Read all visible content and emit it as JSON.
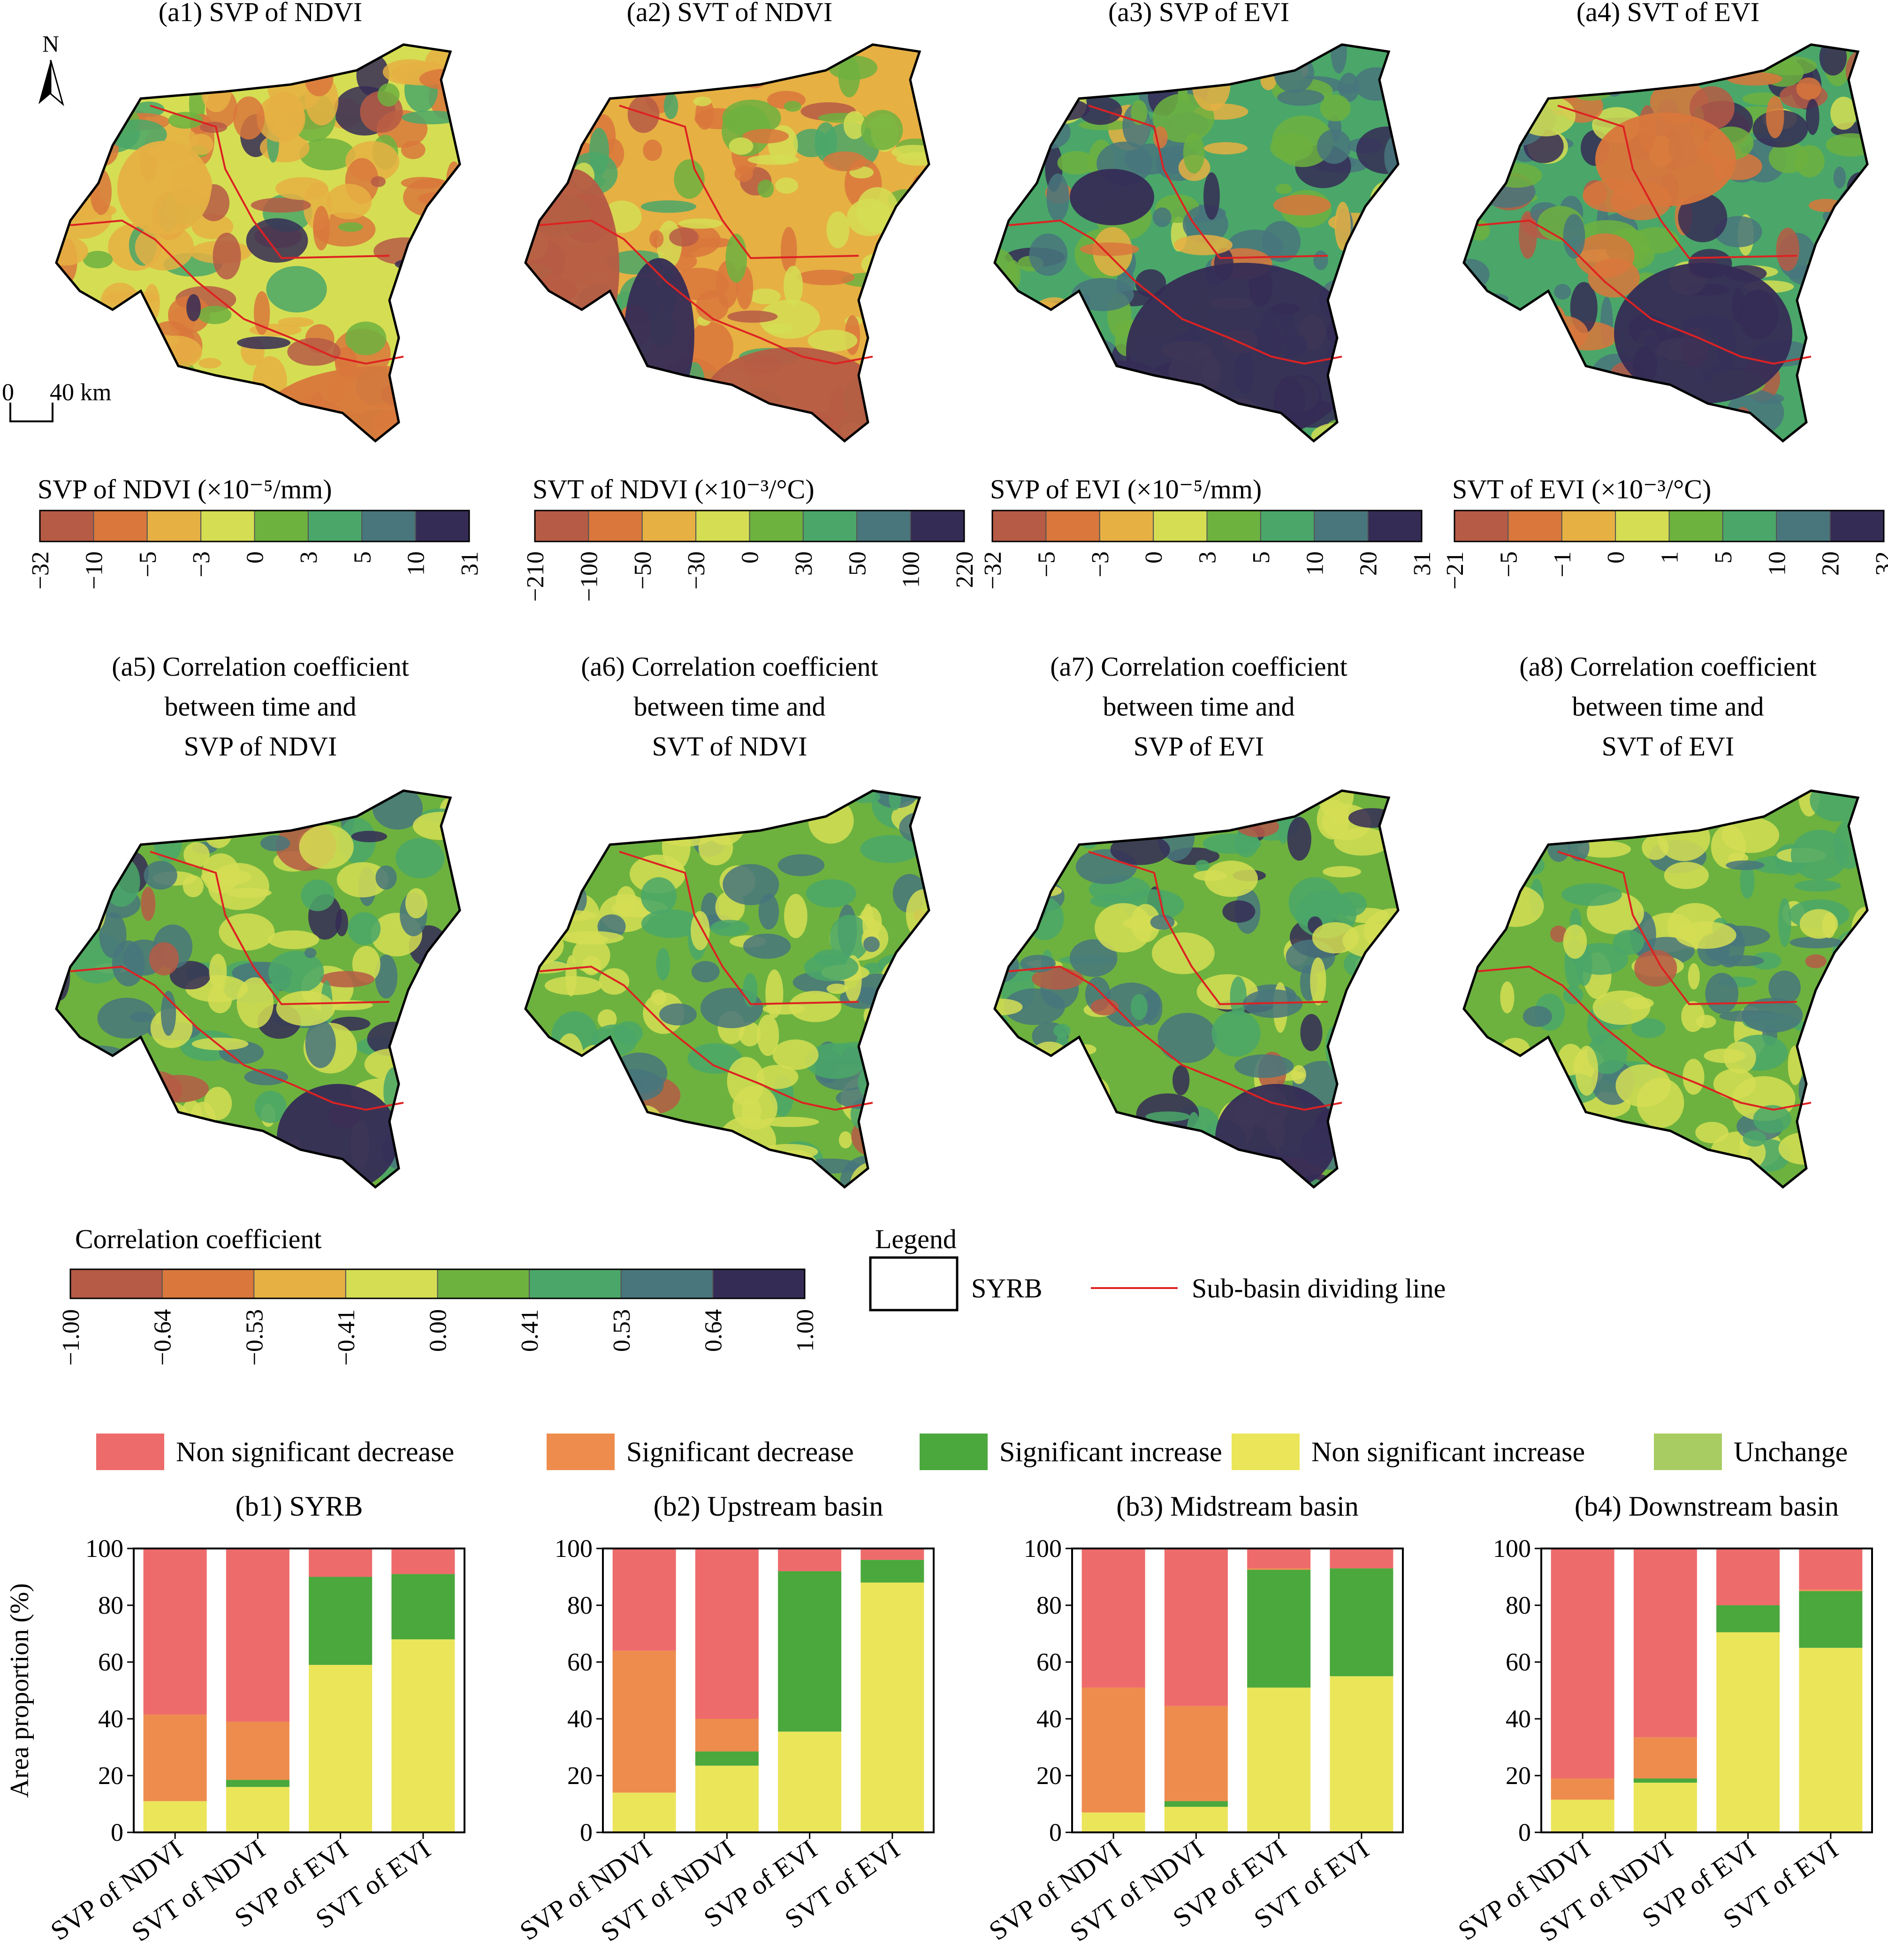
{
  "map_panels": [
    {
      "title": [
        "(a1) SVP of NDVI"
      ],
      "scheme": "svp_ndvi"
    },
    {
      "title": [
        "(a2) SVT of NDVI"
      ],
      "scheme": "svt_ndvi"
    },
    {
      "title": [
        "(a3) SVP of EVI"
      ],
      "scheme": "svp_evi"
    },
    {
      "title": [
        "(a4) SVT of EVI"
      ],
      "scheme": "svt_evi"
    },
    {
      "title": [
        "(a5) Correlation coefficient",
        "between time and",
        "SVP of NDVI"
      ],
      "scheme": "corr_a"
    },
    {
      "title": [
        "(a6) Correlation coefficient",
        "between time and",
        "SVT of NDVI"
      ],
      "scheme": "corr_b"
    },
    {
      "title": [
        "(a7) Correlation coefficient",
        "between time and",
        "SVP of EVI"
      ],
      "scheme": "corr_a"
    },
    {
      "title": [
        "(a8) Correlation coefficient",
        "between time and",
        "SVT of EVI"
      ],
      "scheme": "corr_b"
    }
  ],
  "north_label": "N",
  "scale_bar": {
    "zero": "0",
    "label": "40 km"
  },
  "colorbars": [
    {
      "title": "SVP of NDVI (×10⁻⁵/mm)",
      "ticks": [
        "−32",
        "−10",
        "−5",
        "−3",
        "0",
        "3",
        "5",
        "10",
        "31"
      ]
    },
    {
      "title": "SVT of NDVI (×10⁻³/°C)",
      "ticks": [
        "−210",
        "−100",
        "−50",
        "−30",
        "0",
        "30",
        "50",
        "100",
        "220"
      ]
    },
    {
      "title": "SVP of EVI (×10⁻⁵/mm)",
      "ticks": [
        "−32",
        "−5",
        "−3",
        "0",
        "3",
        "5",
        "10",
        "20",
        "31"
      ]
    },
    {
      "title": "SVT of EVI (×10⁻³/°C)",
      "ticks": [
        "−21",
        "−5",
        "−1",
        "0",
        "1",
        "5",
        "10",
        "20",
        "32"
      ]
    }
  ],
  "colorbar_colors": [
    "#b65b45",
    "#d9773c",
    "#e6b043",
    "#d5de53",
    "#6db23f",
    "#4aa769",
    "#48767c",
    "#352c56"
  ],
  "corr_colorbar": {
    "title": "Correlation coefficient",
    "ticks": [
      "−1.00",
      "−0.64",
      "−0.53",
      "−0.41",
      "0.00",
      "0.41",
      "0.53",
      "0.64",
      "1.00"
    ]
  },
  "map_legend": {
    "title": "Legend",
    "basin": "SYRB",
    "divider": "Sub-basin dividing line"
  },
  "colors": {
    "boundary": "#000000",
    "divider": "#dd2222"
  },
  "chart_data": [
    {
      "type": "bar",
      "stacked": true,
      "title": "(b1) SYRB",
      "ylabel": "Area proportion (%)",
      "ylim": [
        0,
        100
      ],
      "yticks": [
        0,
        20,
        40,
        60,
        80,
        100
      ],
      "categories": [
        "SVP of NDVI",
        "SVT of NDVI",
        "SVP of EVI",
        "SVT of EVI"
      ],
      "series": [
        {
          "name": "Non significant increase",
          "color": "#ebe55a",
          "values": [
            11,
            16,
            59,
            68
          ]
        },
        {
          "name": "Unchange",
          "color": "#a8cc62",
          "values": [
            0,
            0,
            0,
            0
          ]
        },
        {
          "name": "Significant increase",
          "color": "#4aa83c",
          "values": [
            0,
            2.5,
            31,
            23
          ]
        },
        {
          "name": "Significant decrease",
          "color": "#ee8c4e",
          "values": [
            30.5,
            20.5,
            0,
            0
          ]
        },
        {
          "name": "Non significant decrease",
          "color": "#ee6b6b",
          "values": [
            58.5,
            61,
            10,
            9
          ]
        }
      ]
    },
    {
      "type": "bar",
      "stacked": true,
      "title": "(b2) Upstream basin",
      "ylim": [
        0,
        100
      ],
      "yticks": [
        0,
        20,
        40,
        60,
        80,
        100
      ],
      "categories": [
        "SVP of NDVI",
        "SVT of NDVI",
        "SVP of EVI",
        "SVT of EVI"
      ],
      "series": [
        {
          "name": "Non significant increase",
          "color": "#ebe55a",
          "values": [
            14,
            23.5,
            35.5,
            88
          ]
        },
        {
          "name": "Unchange",
          "color": "#a8cc62",
          "values": [
            0,
            0,
            0,
            0
          ]
        },
        {
          "name": "Significant increase",
          "color": "#4aa83c",
          "values": [
            0,
            5,
            56.5,
            8
          ]
        },
        {
          "name": "Significant decrease",
          "color": "#ee8c4e",
          "values": [
            50,
            11.5,
            0,
            0
          ]
        },
        {
          "name": "Non significant decrease",
          "color": "#ee6b6b",
          "values": [
            36,
            60,
            8,
            4
          ]
        }
      ]
    },
    {
      "type": "bar",
      "stacked": true,
      "title": "(b3) Midstream basin",
      "ylim": [
        0,
        100
      ],
      "yticks": [
        0,
        20,
        40,
        60,
        80,
        100
      ],
      "categories": [
        "SVP of NDVI",
        "SVT of NDVI",
        "SVP of EVI",
        "SVT of EVI"
      ],
      "series": [
        {
          "name": "Non significant increase",
          "color": "#ebe55a",
          "values": [
            7,
            9,
            51,
            55
          ]
        },
        {
          "name": "Unchange",
          "color": "#a8cc62",
          "values": [
            0,
            0,
            0,
            0
          ]
        },
        {
          "name": "Significant increase",
          "color": "#4aa83c",
          "values": [
            0,
            2,
            41.5,
            38
          ]
        },
        {
          "name": "Significant decrease",
          "color": "#ee8c4e",
          "values": [
            44,
            33.5,
            0.5,
            0
          ]
        },
        {
          "name": "Non significant decrease",
          "color": "#ee6b6b",
          "values": [
            49,
            55.5,
            7,
            7
          ]
        }
      ]
    },
    {
      "type": "bar",
      "stacked": true,
      "title": "(b4) Downstream basin",
      "ylim": [
        0,
        100
      ],
      "yticks": [
        0,
        20,
        40,
        60,
        80,
        100
      ],
      "categories": [
        "SVP of NDVI",
        "SVT of NDVI",
        "SVP of EVI",
        "SVT of EVI"
      ],
      "series": [
        {
          "name": "Non significant increase",
          "color": "#ebe55a",
          "values": [
            11.5,
            17.5,
            70.5,
            65
          ]
        },
        {
          "name": "Unchange",
          "color": "#a8cc62",
          "values": [
            0,
            0,
            0,
            0
          ]
        },
        {
          "name": "Significant increase",
          "color": "#4aa83c",
          "values": [
            0,
            1.5,
            9.5,
            20
          ]
        },
        {
          "name": "Significant decrease",
          "color": "#ee8c4e",
          "values": [
            7.5,
            14.5,
            0,
            0.5
          ]
        },
        {
          "name": "Non significant decrease",
          "color": "#ee6b6b",
          "values": [
            81,
            66.5,
            20,
            14.5
          ]
        }
      ]
    }
  ],
  "bar_legend": [
    {
      "label": "Non significant decrease",
      "color": "#ee6b6b"
    },
    {
      "label": "Significant decrease",
      "color": "#ee8c4e"
    },
    {
      "label": "Significant increase",
      "color": "#4aa83c"
    },
    {
      "label": "Non significant increase",
      "color": "#ebe55a"
    },
    {
      "label": "Unchange",
      "color": "#a8cc62"
    }
  ]
}
